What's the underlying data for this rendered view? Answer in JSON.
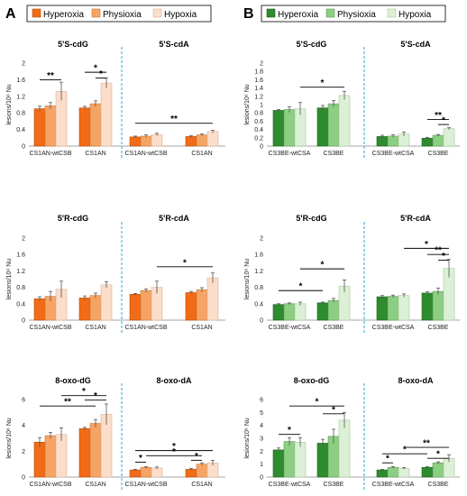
{
  "panels": [
    {
      "letter": "A",
      "legend": [
        "Hyperoxia",
        "Physioxia",
        "Hypoxia"
      ],
      "colors": [
        "#f26b16",
        "#f6a463",
        "#fbddc9"
      ],
      "edge_colors": [
        "#b84c0a",
        "#c8783a",
        "#d9b59a"
      ]
    },
    {
      "letter": "B",
      "legend": [
        "Hyperoxia",
        "Physioxia",
        "Hypoxia"
      ],
      "colors": [
        "#2e8b2e",
        "#8ccf82",
        "#dcf0d6"
      ],
      "edge_colors": [
        "#1f621f",
        "#5f9a57",
        "#a9c9a2"
      ]
    }
  ],
  "ylabel": "lesions/10⁶ Nu",
  "chart_data": [
    {
      "type": "bar",
      "panel": "A",
      "row": 0,
      "ylim": [
        0,
        2
      ],
      "yticks": [
        "0",
        "0.4",
        "0.8",
        "1.2",
        "1.6",
        "2"
      ],
      "groups": [
        {
          "title": "5'S-cdG",
          "categories": [
            "CS1AN-wtCSB",
            "CS1AN"
          ],
          "values": [
            [
              0.9,
              0.97,
              1.32
            ],
            [
              0.92,
              1.02,
              1.52
            ]
          ],
          "errors": [
            [
              0.06,
              0.08,
              0.22
            ],
            [
              0.04,
              0.07,
              0.12
            ]
          ]
        },
        {
          "title": "5'S-cdA",
          "categories": [
            "CS1AN-wtCSB",
            "CS1AN"
          ],
          "values": [
            [
              0.22,
              0.24,
              0.28
            ],
            [
              0.23,
              0.27,
              0.35
            ]
          ],
          "errors": [
            [
              0.02,
              0.03,
              0.03
            ],
            [
              0.02,
              0.02,
              0.03
            ]
          ]
        }
      ],
      "sig_labels": [
        "**",
        "*",
        "*",
        "**"
      ]
    },
    {
      "type": "bar",
      "panel": "A",
      "row": 1,
      "ylim": [
        0,
        2
      ],
      "yticks": [
        "0",
        "0.4",
        "0.8",
        "1.2",
        "1.6",
        "2"
      ],
      "groups": [
        {
          "title": "5'R-cdG",
          "categories": [
            "CS1AN-wtCSB",
            "CS1AN"
          ],
          "values": [
            [
              0.52,
              0.58,
              0.75
            ],
            [
              0.54,
              0.6,
              0.86
            ]
          ],
          "errors": [
            [
              0.05,
              0.12,
              0.2
            ],
            [
              0.05,
              0.06,
              0.08
            ]
          ]
        },
        {
          "title": "5'R-cdA",
          "categories": [
            "CS1AN-wtCSB",
            "CS1AN"
          ],
          "values": [
            [
              0.63,
              0.72,
              0.8
            ],
            [
              0.67,
              0.74,
              1.03
            ]
          ],
          "errors": [
            [
              0.02,
              0.04,
              0.15
            ],
            [
              0.03,
              0.05,
              0.12
            ]
          ]
        }
      ],
      "sig_labels": [
        "*"
      ]
    },
    {
      "type": "bar",
      "panel": "A",
      "row": 2,
      "ylim": [
        0,
        6
      ],
      "yticks": [
        "0",
        "2",
        "4",
        "6"
      ],
      "groups": [
        {
          "title": "8-oxo-dG",
          "categories": [
            "CS1AN-wtCSB",
            "CS1AN"
          ],
          "values": [
            [
              2.7,
              3.2,
              3.3
            ],
            [
              3.75,
              4.15,
              4.85
            ]
          ],
          "errors": [
            [
              0.35,
              0.25,
              0.5
            ],
            [
              0.1,
              0.3,
              0.8
            ]
          ]
        },
        {
          "title": "8-oxo-dA",
          "categories": [
            "CS1AN-wtCSB",
            "CS1AN"
          ],
          "values": [
            [
              0.55,
              0.75,
              0.7
            ],
            [
              0.6,
              1.0,
              1.1
            ]
          ],
          "errors": [
            [
              0.05,
              0.06,
              0.08
            ],
            [
              0.08,
              0.1,
              0.2
            ]
          ]
        }
      ],
      "sig_labels": [
        "**",
        "*",
        "*",
        "*",
        "*",
        "*",
        "*"
      ]
    },
    {
      "type": "bar",
      "panel": "B",
      "row": 0,
      "ylim": [
        0,
        2
      ],
      "yticks": [
        "0",
        "0.2",
        "0.4",
        "0.6",
        "0.8",
        "1",
        "1.2",
        "1.4",
        "1.6",
        "1.8",
        "2"
      ],
      "groups": [
        {
          "title": "5'S-cdG",
          "categories": [
            "CS3BE-wtCSA",
            "CS3BE"
          ],
          "values": [
            [
              0.86,
              0.88,
              0.9
            ],
            [
              0.92,
              1.02,
              1.22
            ]
          ],
          "errors": [
            [
              0.02,
              0.07,
              0.15
            ],
            [
              0.06,
              0.08,
              0.1
            ]
          ]
        },
        {
          "title": "5'S-cdA",
          "categories": [
            "CS3BE-wtCSA",
            "CS3BE"
          ],
          "values": [
            [
              0.23,
              0.24,
              0.29
            ],
            [
              0.19,
              0.26,
              0.42
            ]
          ],
          "errors": [
            [
              0.03,
              0.03,
              0.05
            ],
            [
              0.02,
              0.02,
              0.03
            ]
          ]
        }
      ],
      "sig_labels": [
        "*",
        "**",
        "*"
      ]
    },
    {
      "type": "bar",
      "panel": "B",
      "row": 1,
      "ylim": [
        0,
        2
      ],
      "yticks": [
        "0",
        "0.4",
        "0.8",
        "1.2",
        "1.6",
        "2"
      ],
      "groups": [
        {
          "title": "5'R-cdG",
          "categories": [
            "CS3BE-wtCSA",
            "CS3BE"
          ],
          "values": [
            [
              0.38,
              0.4,
              0.4
            ],
            [
              0.42,
              0.48,
              0.83
            ]
          ],
          "errors": [
            [
              0.02,
              0.02,
              0.04
            ],
            [
              0.02,
              0.05,
              0.15
            ]
          ]
        },
        {
          "title": "5'R-cdA",
          "categories": [
            "CS3BE-wtCSA",
            "CS3BE"
          ],
          "values": [
            [
              0.57,
              0.58,
              0.6
            ],
            [
              0.66,
              0.7,
              1.26
            ]
          ],
          "errors": [
            [
              0.03,
              0.03,
              0.04
            ],
            [
              0.03,
              0.08,
              0.22
            ]
          ]
        }
      ],
      "sig_labels": [
        "*",
        "*",
        "*",
        "**",
        "*"
      ]
    },
    {
      "type": "bar",
      "panel": "B",
      "row": 2,
      "ylim": [
        0,
        6
      ],
      "yticks": [
        "0",
        "1",
        "2",
        "3",
        "4",
        "5",
        "6"
      ],
      "groups": [
        {
          "title": "8-oxo-dG",
          "categories": [
            "CS3BE-wtCSA",
            "CS3BE"
          ],
          "values": [
            [
              2.1,
              2.75,
              2.7
            ],
            [
              2.62,
              3.15,
              4.4
            ]
          ],
          "errors": [
            [
              0.15,
              0.3,
              0.35
            ],
            [
              0.3,
              0.55,
              0.6
            ]
          ]
        },
        {
          "title": "8-oxo-dA",
          "categories": [
            "CS3BE-wtCSA",
            "CS3BE"
          ],
          "values": [
            [
              0.55,
              0.75,
              0.68
            ],
            [
              0.75,
              1.1,
              1.45
            ]
          ],
          "errors": [
            [
              0.05,
              0.06,
              0.06
            ],
            [
              0.05,
              0.08,
              0.28
            ]
          ]
        }
      ],
      "sig_labels": [
        "*",
        "*",
        "*",
        "*",
        "*",
        "**",
        "*"
      ]
    }
  ]
}
